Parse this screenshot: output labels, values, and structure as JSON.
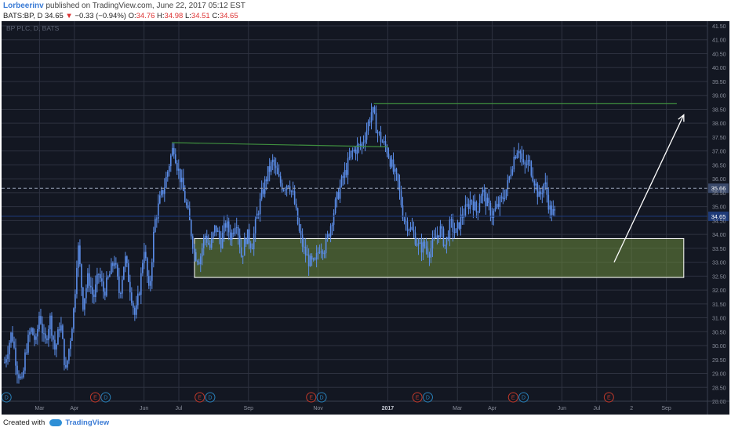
{
  "header": {
    "author": "Lorbeerinv",
    "published": "published on TradingView.com, June 22, 2017 05:12 EST"
  },
  "ohlc": {
    "symbol": "BATS:BP, D",
    "last": "34.65",
    "change": "−0.33 (−0.94%)",
    "o_label": "O:",
    "o": "34.76",
    "h_label": "H:",
    "h": "34.98",
    "l_label": "L:",
    "l": "34.51",
    "c_label": "C:",
    "c": "34.65"
  },
  "footer": {
    "created_with": "Created with",
    "brand": "TradingView"
  },
  "colors": {
    "background": "#131722",
    "grid": "#2e3240",
    "candle": "#5b8de8",
    "resistance": "#3f8f3f",
    "zone_fill": "#6b8a3c",
    "zone_border": "#ffffff",
    "arrow": "#ffffff",
    "earnings": "#c0392b",
    "dividend": "#2980b9",
    "last_price": "#1e3a78",
    "ref_price": "#3b4a6b"
  },
  "chart_data": {
    "type": "candlestick",
    "watermark": "BP PLC, D, BATS",
    "y_axis": {
      "min": 28.0,
      "max": 41.5,
      "step": 0.5,
      "labels": [
        "28.00",
        "28.50",
        "29.00",
        "29.50",
        "30.00",
        "30.50",
        "31.00",
        "31.50",
        "32.00",
        "32.50",
        "33.00",
        "33.50",
        "34.00",
        "34.50",
        "35.00",
        "35.50",
        "36.00",
        "36.50",
        "37.00",
        "37.50",
        "38.00",
        "38.50",
        "39.00",
        "39.50",
        "40.00",
        "40.50",
        "41.00",
        "41.50"
      ]
    },
    "x_axis": {
      "ticks": [
        {
          "label": "Mar",
          "month": 1
        },
        {
          "label": "Apr",
          "month": 2
        },
        {
          "label": "Jun",
          "month": 4
        },
        {
          "label": "Jul",
          "month": 5
        },
        {
          "label": "Sep",
          "month": 7
        },
        {
          "label": "Nov",
          "month": 9
        },
        {
          "label": "2017",
          "month": 11
        },
        {
          "label": "Mar",
          "month": 13
        },
        {
          "label": "Apr",
          "month": 14
        },
        {
          "label": "Jun",
          "month": 16
        },
        {
          "label": "Jul",
          "month": 17
        },
        {
          "label": "2",
          "month": 18
        },
        {
          "label": "Sep",
          "month": 19
        }
      ]
    },
    "price_labels": {
      "last": {
        "value": 34.65,
        "label": "34.65"
      },
      "reference": {
        "value": 35.66,
        "label": "35.66"
      }
    },
    "price_points": [
      [
        0.0,
        29.4
      ],
      [
        0.2,
        30.5
      ],
      [
        0.35,
        29.2
      ],
      [
        0.5,
        28.6
      ],
      [
        0.6,
        29.8
      ],
      [
        0.75,
        30.6
      ],
      [
        0.9,
        30.1
      ],
      [
        1.0,
        31.2
      ],
      [
        1.15,
        30.0
      ],
      [
        1.3,
        31.0
      ],
      [
        1.45,
        29.8
      ],
      [
        1.6,
        30.9
      ],
      [
        1.75,
        29.0
      ],
      [
        1.9,
        30.4
      ],
      [
        2.0,
        31.5
      ],
      [
        2.1,
        33.7
      ],
      [
        2.25,
        31.5
      ],
      [
        2.4,
        32.5
      ],
      [
        2.55,
        31.7
      ],
      [
        2.7,
        32.6
      ],
      [
        2.85,
        31.9
      ],
      [
        3.0,
        32.5
      ],
      [
        3.15,
        33.1
      ],
      [
        3.3,
        31.8
      ],
      [
        3.45,
        33.2
      ],
      [
        3.6,
        32.1
      ],
      [
        3.75,
        31.0
      ],
      [
        3.9,
        32.3
      ],
      [
        4.0,
        33.6
      ],
      [
        4.15,
        31.8
      ],
      [
        4.3,
        34.4
      ],
      [
        4.45,
        35.2
      ],
      [
        4.6,
        35.8
      ],
      [
        4.75,
        36.7
      ],
      [
        4.85,
        37.2
      ],
      [
        4.95,
        36.5
      ],
      [
        5.05,
        36.0
      ],
      [
        5.15,
        35.4
      ],
      [
        5.3,
        34.5
      ],
      [
        5.45,
        33.3
      ],
      [
        5.6,
        33.1
      ],
      [
        5.75,
        34.0
      ],
      [
        5.9,
        33.5
      ],
      [
        6.05,
        34.3
      ],
      [
        6.2,
        33.7
      ],
      [
        6.35,
        34.4
      ],
      [
        6.5,
        33.9
      ],
      [
        6.65,
        34.6
      ],
      [
        6.8,
        33.2
      ],
      [
        6.95,
        34.0
      ],
      [
        7.1,
        33.6
      ],
      [
        7.25,
        34.7
      ],
      [
        7.4,
        35.5
      ],
      [
        7.55,
        36.2
      ],
      [
        7.7,
        36.6
      ],
      [
        7.85,
        36.0
      ],
      [
        8.0,
        35.7
      ],
      [
        8.15,
        35.9
      ],
      [
        8.3,
        35.3
      ],
      [
        8.45,
        34.1
      ],
      [
        8.6,
        33.4
      ],
      [
        8.75,
        33.0
      ],
      [
        8.9,
        32.9
      ],
      [
        9.05,
        33.6
      ],
      [
        9.2,
        33.5
      ],
      [
        9.35,
        34.3
      ],
      [
        9.5,
        35.1
      ],
      [
        9.65,
        35.8
      ],
      [
        9.8,
        36.3
      ],
      [
        9.95,
        36.9
      ],
      [
        10.1,
        37.1
      ],
      [
        10.25,
        37.2
      ],
      [
        10.4,
        37.8
      ],
      [
        10.55,
        38.5
      ],
      [
        10.7,
        37.7
      ],
      [
        10.85,
        37.3
      ],
      [
        11.0,
        37.0
      ],
      [
        11.15,
        36.3
      ],
      [
        11.3,
        35.8
      ],
      [
        11.45,
        34.6
      ],
      [
        11.6,
        34.3
      ],
      [
        11.75,
        34.0
      ],
      [
        11.9,
        33.5
      ],
      [
        12.05,
        33.6
      ],
      [
        12.2,
        33.4
      ],
      [
        12.35,
        33.8
      ],
      [
        12.5,
        34.2
      ],
      [
        12.65,
        33.6
      ],
      [
        12.8,
        34.4
      ],
      [
        12.95,
        34.0
      ],
      [
        13.1,
        34.6
      ],
      [
        13.25,
        34.9
      ],
      [
        13.4,
        35.3
      ],
      [
        13.55,
        34.8
      ],
      [
        13.7,
        35.6
      ],
      [
        13.85,
        35.1
      ],
      [
        14.0,
        34.7
      ],
      [
        14.15,
        35.0
      ],
      [
        14.3,
        35.3
      ],
      [
        14.45,
        35.8
      ],
      [
        14.6,
        36.7
      ],
      [
        14.75,
        37.2
      ],
      [
        14.9,
        36.4
      ],
      [
        15.05,
        36.6
      ],
      [
        15.2,
        36.0
      ],
      [
        15.35,
        35.3
      ],
      [
        15.5,
        35.9
      ],
      [
        15.65,
        34.9
      ],
      [
        15.8,
        34.7
      ]
    ],
    "annotations": {
      "resistance_lines": [
        {
          "x1_month": 4.8,
          "y1": 37.3,
          "x2_month": 11.0,
          "y2": 37.15
        },
        {
          "x1_month": 10.6,
          "y1": 38.7,
          "x2_month": 19.3,
          "y2": 38.7
        }
      ],
      "support_zone": {
        "x1_month": 5.45,
        "x2_month": 19.5,
        "y_low": 32.45,
        "y_high": 33.85
      },
      "arrow": {
        "x1_month": 17.5,
        "y1": 33.0,
        "x2_month": 19.5,
        "y2": 38.3
      }
    },
    "events": [
      {
        "type": "D",
        "label": "D",
        "month": 0.05
      },
      {
        "type": "E",
        "label": "E",
        "month": 2.6
      },
      {
        "type": "D",
        "label": "D",
        "month": 2.9
      },
      {
        "type": "E",
        "label": "E",
        "month": 5.6
      },
      {
        "type": "D",
        "label": "D",
        "month": 5.9
      },
      {
        "type": "E",
        "label": "E",
        "month": 8.8
      },
      {
        "type": "D",
        "label": "D",
        "month": 9.1
      },
      {
        "type": "E",
        "label": "E",
        "month": 11.85
      },
      {
        "type": "D",
        "label": "D",
        "month": 12.15
      },
      {
        "type": "E",
        "label": "E",
        "month": 14.6
      },
      {
        "type": "D",
        "label": "D",
        "month": 14.9
      },
      {
        "type": "E",
        "label": "E",
        "month": 17.35
      }
    ]
  }
}
